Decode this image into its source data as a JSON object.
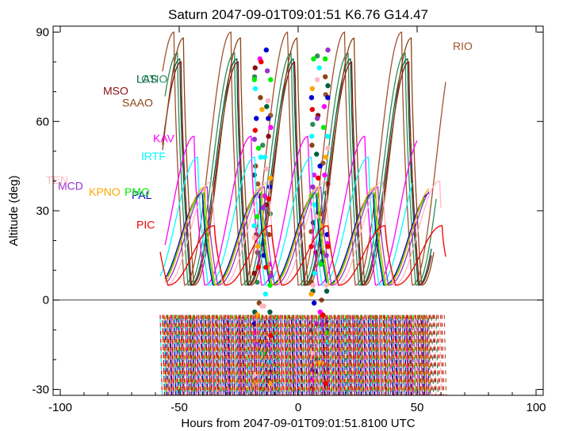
{
  "chart_data": {
    "type": "line",
    "title": "Saturn 2047-09-01T09:01:51  K6.76  G14.47",
    "xlabel": "Hours from 2047-09-01T09:01:51.8100 UTC",
    "ylabel": "Altitude (deg)",
    "xlim": [
      -103,
      103
    ],
    "ylim": [
      -32,
      92
    ],
    "xticks": [
      -100,
      -50,
      0,
      50,
      100
    ],
    "xtick_labels": [
      "-100",
      "-50",
      "0",
      "50",
      "100"
    ],
    "yticks": [
      -30,
      0,
      30,
      60,
      90
    ],
    "ytick_labels": [
      "-30",
      "0",
      "30",
      "60",
      "90"
    ],
    "grid": false,
    "zero_line": 0,
    "series": [
      {
        "name": "RIO",
        "color": "#a0522d",
        "start": -57,
        "end": 62,
        "peak": 90,
        "offset": 0.0,
        "label_pos": [
          65,
          84
        ]
      },
      {
        "name": "CTIO",
        "color": "#2e8b57",
        "start": -56,
        "end": 58,
        "peak": 83,
        "offset": 1.5,
        "label_pos": [
          -66,
          73
        ]
      },
      {
        "name": "LAS",
        "color": "#006040",
        "start": -53,
        "end": 56,
        "peak": 81,
        "offset": 2.5,
        "label_pos": [
          -68,
          73
        ]
      },
      {
        "name": "MSO",
        "color": "#8b1010",
        "start": -57,
        "end": 56,
        "peak": 80,
        "offset": 3.0,
        "label_pos": [
          -82,
          69
        ]
      },
      {
        "name": "SAAO",
        "color": "#8b4513",
        "start": -57,
        "end": 57,
        "peak": 88,
        "offset": 4.0,
        "label_pos": [
          -74,
          65
        ]
      },
      {
        "name": "KAV",
        "color": "#ff00ff",
        "start": -56,
        "end": 50,
        "peak": 55,
        "offset": 8.5,
        "label_pos": [
          -61,
          53
        ]
      },
      {
        "name": "IRTF",
        "color": "#00ffff",
        "start": -58,
        "end": 48,
        "peak": 48,
        "offset": 10.0,
        "label_pos": [
          -66,
          47
        ]
      },
      {
        "name": "PAL",
        "color": "#0000cd",
        "start": -56,
        "end": 55,
        "peak": 36,
        "offset": 12.0,
        "label_pos": [
          -70,
          34
        ]
      },
      {
        "name": "PMO",
        "color": "#00ee00",
        "start": -55,
        "end": 53,
        "peak": 36,
        "offset": 12.5,
        "label_pos": [
          -73,
          35
        ]
      },
      {
        "name": "KPNO",
        "color": "#ffa500",
        "start": -56,
        "end": 55,
        "peak": 38,
        "offset": 13.0,
        "label_pos": [
          -88,
          35
        ]
      },
      {
        "name": "MCD",
        "color": "#9932cc",
        "start": -55,
        "end": 55,
        "peak": 38,
        "offset": 14.0,
        "label_pos": [
          -101,
          37
        ]
      },
      {
        "name": "TEN",
        "color": "#ffb6c1",
        "start": -55,
        "end": 60,
        "peak": 40,
        "offset": 16.0,
        "label_pos": [
          -106,
          39
        ]
      },
      {
        "name": "PIC",
        "color": "#ee0000",
        "start": -58,
        "end": 62,
        "peak": 25,
        "offset": 17.0,
        "label_pos": [
          -68,
          24
        ]
      }
    ]
  }
}
